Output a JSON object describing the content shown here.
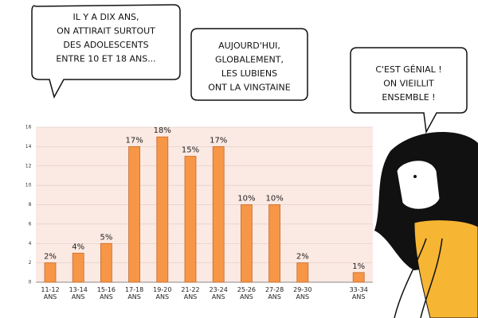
{
  "bubbles": [
    {
      "lines": [
        "IL Y A DIX ANS,",
        "ON ATTIRAIT SURTOUT",
        "DES ADOLESCENTS",
        "ENTRE 10 ET 18 ANS..."
      ]
    },
    {
      "lines": [
        "AUJOURD'HUI,",
        "GLOBALEMENT,",
        "LES LUBIENS",
        "ONT LA VINGTAINE"
      ]
    },
    {
      "lines": [
        "C'EST GÉNIAL !",
        "ON VIEILLIT",
        "ENSEMBLE !"
      ]
    }
  ],
  "chart_data": {
    "type": "bar",
    "categories": [
      "11-12 ANS",
      "13-14 ANS",
      "15-16 ANS",
      "17-18 ANS",
      "19-20 ANS",
      "21-22 ANS",
      "23-24 ANS",
      "25-26 ANS",
      "27-28 ANS",
      "29-30 ANS",
      null,
      "33-34 ANS"
    ],
    "values": [
      2,
      3,
      4,
      14,
      15,
      13,
      14,
      8,
      8,
      2,
      0,
      1
    ],
    "value_labels": [
      "2%",
      "4%",
      "5%",
      "17%",
      "18%",
      "15%",
      "17%",
      "10%",
      "10%",
      "2%",
      null,
      "1%"
    ],
    "color": "#f79646",
    "ylim": [
      0,
      16
    ],
    "yticks": [
      0,
      2,
      4,
      6,
      8,
      10,
      12,
      14,
      16
    ],
    "grid": true
  }
}
